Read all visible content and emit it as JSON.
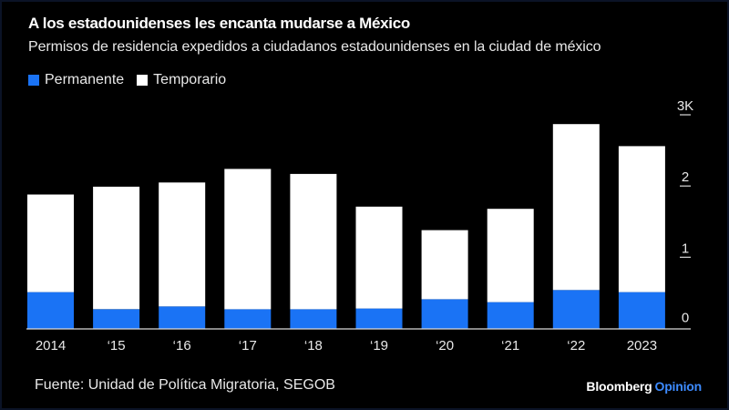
{
  "header": {
    "title": "A los estadounidenses les encanta mudarse a México",
    "subtitle": "Permisos de residencia expedidos a ciudadanos estadounidenses en la ciudad de méxico"
  },
  "footer": {
    "source": "Fuente: Unidad de Política Migratoria, SEGOB",
    "brand_primary": "Bloomberg",
    "brand_secondary": "Opinion"
  },
  "colors": {
    "background": "#000000",
    "permanente": "#1a73f5",
    "temporario": "#ffffff",
    "axis": "#d9d9d9",
    "brand_accent": "#3d8bff"
  },
  "chart_data": {
    "type": "bar",
    "stacked": true,
    "title": "A los estadounidenses les encanta mudarse a México",
    "subtitle": "Permisos de residencia expedidos a ciudadanos estadounidenses en la ciudad de méxico",
    "xlabel": "",
    "ylabel": "",
    "categories": [
      "2014",
      "‘15",
      "‘16",
      "‘17",
      "‘18",
      "‘19",
      "‘20",
      "‘21",
      "‘22",
      "2023"
    ],
    "series": [
      {
        "name": "Permanente",
        "color": "#1a73f5",
        "values": [
          510,
          270,
          310,
          270,
          270,
          280,
          410,
          370,
          540,
          510
        ]
      },
      {
        "name": "Temporario",
        "color": "#ffffff",
        "values": [
          1370,
          1720,
          1740,
          1970,
          1900,
          1430,
          970,
          1310,
          2330,
          2050
        ]
      }
    ],
    "totals": [
      1880,
      1990,
      2050,
      2240,
      2170,
      1710,
      1380,
      1680,
      2870,
      2560
    ],
    "ylim": [
      0,
      3000
    ],
    "yticks": [
      0,
      1000,
      2000,
      3000
    ],
    "ytick_labels": [
      "0",
      "1",
      "2",
      "3K"
    ],
    "y_axis_side": "right",
    "grid": false,
    "legend": {
      "position": "top-left",
      "entries": [
        "Permanente",
        "Temporario"
      ]
    },
    "source": "Fuente: Unidad de Política Migratoria, SEGOB"
  }
}
